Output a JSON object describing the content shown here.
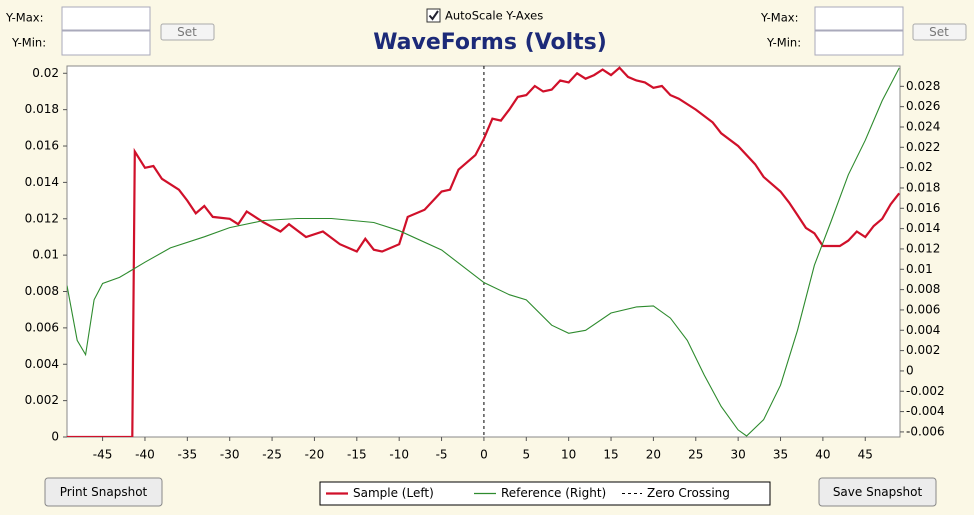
{
  "ui": {
    "left": {
      "ymax_label": "Y-Max:",
      "ymin_label": "Y-Min:",
      "set": "Set"
    },
    "right": {
      "ymax_label": "Y-Max:",
      "ymin_label": "Y-Min:",
      "set": "Set"
    },
    "autoscale": {
      "label": "AutoScale Y-Axes",
      "checked": true
    },
    "print_button": "Print Snapshot",
    "save_button": "Save Snapshot"
  },
  "chart_data": {
    "type": "line",
    "title": "WaveForms (Volts)",
    "xlim": [
      -49.2,
      49.1
    ],
    "xticks": [
      -45,
      -40,
      -35,
      -30,
      -25,
      -20,
      -15,
      -10,
      -5,
      0,
      5,
      10,
      15,
      20,
      25,
      30,
      35,
      40,
      45
    ],
    "ylim": [
      0,
      0.0204
    ],
    "yticks": [
      0,
      0.002,
      0.004,
      0.006,
      0.008,
      0.01,
      0.012,
      0.014,
      0.016,
      0.018,
      0.02
    ],
    "y2lim": [
      -0.0065,
      0.03
    ],
    "y2ticks": [
      -0.006,
      -0.004,
      -0.002,
      0,
      0.002,
      0.004,
      0.006,
      0.008,
      0.01,
      0.012,
      0.014,
      0.016,
      0.018,
      0.02,
      0.022,
      0.024,
      0.026,
      0.028
    ],
    "zero_crossing": {
      "name": "Zero Crossing",
      "x": 0
    },
    "series": [
      {
        "name": "Sample (Left)",
        "color": "#d0102a",
        "axis": "y",
        "x": [
          -49.2,
          -41.5,
          -41.2,
          -40,
          -39,
          -38,
          -36,
          -35,
          -34,
          -33,
          -32,
          -30,
          -29,
          -28,
          -26,
          -24,
          -23,
          -21,
          -19,
          -17,
          -15,
          -14,
          -13,
          -12,
          -10,
          -9,
          -7,
          -5,
          -4,
          -3,
          -1,
          0,
          1,
          2,
          3,
          4,
          5,
          6,
          7,
          8,
          9,
          10,
          11,
          12,
          13,
          14,
          15,
          16,
          17,
          18,
          19,
          20,
          21,
          22,
          23,
          25,
          27,
          28,
          30,
          32,
          33,
          35,
          36,
          37,
          38,
          39,
          40,
          42,
          43,
          44,
          45,
          46,
          47,
          48,
          49
        ],
        "values": [
          0,
          0,
          0.0157,
          0.0148,
          0.0149,
          0.0142,
          0.0136,
          0.013,
          0.0123,
          0.0127,
          0.0121,
          0.012,
          0.0117,
          0.0124,
          0.0118,
          0.0113,
          0.0117,
          0.011,
          0.0113,
          0.0106,
          0.0102,
          0.0109,
          0.0103,
          0.0102,
          0.0106,
          0.0121,
          0.0125,
          0.0135,
          0.0136,
          0.0147,
          0.0155,
          0.0164,
          0.0175,
          0.0174,
          0.018,
          0.0187,
          0.0188,
          0.0193,
          0.019,
          0.0191,
          0.0196,
          0.0195,
          0.02,
          0.0197,
          0.0199,
          0.0202,
          0.0199,
          0.0203,
          0.0198,
          0.0196,
          0.0195,
          0.0192,
          0.0193,
          0.0188,
          0.0186,
          0.018,
          0.0173,
          0.0167,
          0.016,
          0.015,
          0.0143,
          0.0135,
          0.0129,
          0.0122,
          0.0115,
          0.0112,
          0.0105,
          0.0105,
          0.0108,
          0.0113,
          0.011,
          0.0116,
          0.012,
          0.0128,
          0.0134
        ]
      },
      {
        "name": "Reference (Right)",
        "color": "#2e8b2e",
        "axis": "y2",
        "x": [
          -49.2,
          -48,
          -47,
          -46,
          -45,
          -43,
          -40,
          -37,
          -33,
          -30,
          -26,
          -22,
          -18,
          -13,
          -10,
          -5,
          0,
          3,
          5,
          8,
          10,
          12,
          15,
          18,
          20,
          22,
          24,
          26,
          28,
          30,
          31,
          33,
          35,
          37,
          39,
          41,
          43,
          45,
          47,
          49
        ],
        "values": [
          0.0084,
          0.003,
          0.0016,
          0.007,
          0.0086,
          0.0092,
          0.0107,
          0.0121,
          0.0132,
          0.0141,
          0.0148,
          0.015,
          0.015,
          0.0146,
          0.0138,
          0.0119,
          0.0087,
          0.0075,
          0.007,
          0.0045,
          0.0037,
          0.004,
          0.0057,
          0.0063,
          0.0064,
          0.0052,
          0.003,
          -0.0004,
          -0.0035,
          -0.0058,
          -0.0064,
          -0.0048,
          -0.0014,
          0.004,
          0.0104,
          0.0148,
          0.0193,
          0.0227,
          0.0266,
          0.0298
        ]
      }
    ]
  }
}
